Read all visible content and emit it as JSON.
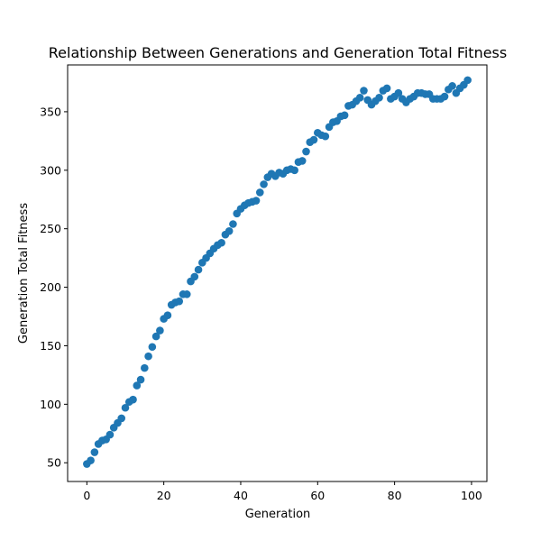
{
  "chart_data": {
    "type": "scatter",
    "title": "Relationship Between Generations and Generation Total Fitness",
    "xlabel": "Generation",
    "ylabel": "Generation Total Fitness",
    "xlim": [
      -5,
      104
    ],
    "ylim": [
      34,
      390
    ],
    "xticks": [
      0,
      20,
      40,
      60,
      80,
      100
    ],
    "yticks": [
      50,
      100,
      150,
      200,
      250,
      300,
      350
    ],
    "grid": false,
    "marker_color": "#1f77b4",
    "x": [
      0,
      1,
      2,
      3,
      4,
      5,
      6,
      7,
      8,
      9,
      10,
      11,
      12,
      13,
      14,
      15,
      16,
      17,
      18,
      19,
      20,
      21,
      22,
      23,
      24,
      25,
      26,
      27,
      28,
      29,
      30,
      31,
      32,
      33,
      34,
      35,
      36,
      37,
      38,
      39,
      40,
      41,
      42,
      43,
      44,
      45,
      46,
      47,
      48,
      49,
      50,
      51,
      52,
      53,
      54,
      55,
      56,
      57,
      58,
      59,
      60,
      61,
      62,
      63,
      64,
      65,
      66,
      67,
      68,
      69,
      70,
      71,
      72,
      73,
      74,
      75,
      76,
      77,
      78,
      79,
      80,
      81,
      82,
      83,
      84,
      85,
      86,
      87,
      88,
      89,
      90,
      91,
      92,
      93,
      94,
      95,
      96,
      97,
      98,
      99
    ],
    "y": [
      49,
      52,
      59,
      66,
      69,
      70,
      74,
      80,
      84,
      88,
      97,
      102,
      104,
      116,
      121,
      131,
      141,
      149,
      158,
      163,
      173,
      176,
      185,
      187,
      188,
      194,
      194,
      205,
      209,
      215,
      221,
      225,
      229,
      233,
      236,
      238,
      245,
      248,
      254,
      263,
      267,
      270,
      272,
      273,
      274,
      281,
      288,
      294,
      297,
      295,
      298,
      297,
      300,
      301,
      300,
      307,
      308,
      316,
      324,
      326,
      332,
      330,
      329,
      337,
      341,
      342,
      346,
      347,
      355,
      356,
      359,
      362,
      368,
      360,
      356,
      359,
      362,
      368,
      370,
      361,
      363,
      366,
      361,
      358,
      361,
      363,
      366,
      366,
      365,
      365,
      361,
      361,
      361,
      363,
      369,
      372,
      366,
      370,
      373,
      377
    ]
  }
}
